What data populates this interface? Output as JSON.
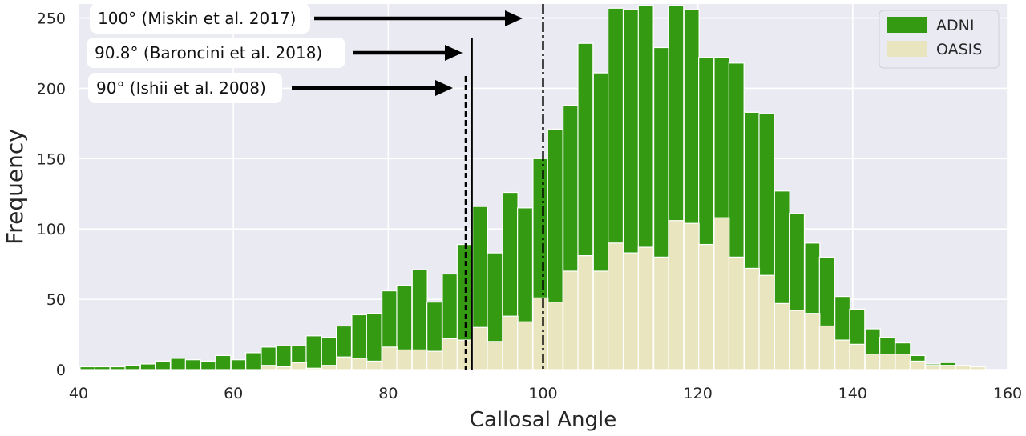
{
  "chart_data": {
    "type": "bar",
    "title": "",
    "xlabel": "Callosal Angle",
    "ylabel": "Frequency",
    "xlim": [
      40,
      160
    ],
    "ylim": [
      0,
      260
    ],
    "xticks": [
      40,
      60,
      80,
      100,
      120,
      140,
      160
    ],
    "yticks": [
      0,
      50,
      100,
      150,
      200,
      250
    ],
    "bin_width": 1.95,
    "grid": true,
    "legend_position": "top-right",
    "style": {
      "plot_background": "#eaeaf2",
      "grid_color": "#ffffff",
      "bar_edge_color": "#ffffff"
    },
    "series": [
      {
        "name": "ADNI",
        "color": "#339a12",
        "bin_starts": [
          40.2,
          42.1,
          44.1,
          46.0,
          48.0,
          49.9,
          51.9,
          53.8,
          55.8,
          57.7,
          59.7,
          61.6,
          63.6,
          65.5,
          67.5,
          69.4,
          71.4,
          73.3,
          75.3,
          77.2,
          79.2,
          81.1,
          83.1,
          85.0,
          87.0,
          88.9,
          90.9,
          92.8,
          94.8,
          96.7,
          98.7,
          100.6,
          102.6,
          104.5,
          106.5,
          108.4,
          110.4,
          112.3,
          114.3,
          116.2,
          118.2,
          120.1,
          122.1,
          124.0,
          126.0,
          127.9,
          129.9,
          131.8,
          133.8,
          135.7,
          137.7,
          139.6,
          141.6,
          143.5,
          145.5,
          147.4,
          149.4,
          151.3,
          153.3,
          155.2
        ],
        "values": [
          2,
          2,
          2,
          3,
          4,
          6,
          8,
          7,
          6,
          10,
          7,
          12,
          16,
          17,
          17,
          24,
          23,
          31,
          39,
          40,
          56,
          60,
          71,
          48,
          68,
          89,
          116,
          83,
          126,
          115,
          150,
          171,
          188,
          232,
          211,
          257,
          256,
          259,
          229,
          259,
          256,
          222,
          222,
          218,
          183,
          182,
          127,
          111,
          90,
          80,
          52,
          43,
          29,
          23,
          19,
          10,
          4,
          5,
          0,
          0
        ]
      },
      {
        "name": "OASIS",
        "color": "#e9e5bf",
        "bin_starts": [
          40.2,
          42.1,
          44.1,
          46.0,
          48.0,
          49.9,
          51.9,
          53.8,
          55.8,
          57.7,
          59.7,
          61.6,
          63.6,
          65.5,
          67.5,
          69.4,
          71.4,
          73.3,
          75.3,
          77.2,
          79.2,
          81.1,
          83.1,
          85.0,
          87.0,
          88.9,
          90.9,
          92.8,
          94.8,
          96.7,
          98.7,
          100.6,
          102.6,
          104.5,
          106.5,
          108.4,
          110.4,
          112.3,
          114.3,
          116.2,
          118.2,
          120.1,
          122.1,
          124.0,
          126.0,
          127.9,
          129.9,
          131.8,
          133.8,
          135.7,
          137.7,
          139.6,
          141.6,
          143.5,
          145.5,
          147.4,
          149.4,
          151.3,
          153.3,
          155.2
        ],
        "values": [
          0,
          0,
          0,
          0,
          0,
          0,
          0,
          0,
          0,
          0,
          0,
          0,
          3,
          2,
          5,
          1,
          3,
          9,
          8,
          6,
          16,
          14,
          14,
          13,
          22,
          21,
          30,
          20,
          38,
          34,
          51,
          48,
          70,
          81,
          70,
          90,
          83,
          87,
          80,
          106,
          104,
          89,
          108,
          80,
          72,
          67,
          47,
          42,
          40,
          31,
          21,
          18,
          11,
          11,
          11,
          6,
          3,
          3,
          3,
          2
        ]
      }
    ],
    "reference_lines": [
      {
        "x": 90.0,
        "style": "dashed",
        "label": "90° (Ishii et al. 2008)"
      },
      {
        "x": 90.8,
        "style": "solid",
        "label": "90.8° (Baroncini et al. 2018)"
      },
      {
        "x": 100.0,
        "style": "dashdot",
        "label": "100° (Miskin et al. 2017)"
      }
    ]
  }
}
